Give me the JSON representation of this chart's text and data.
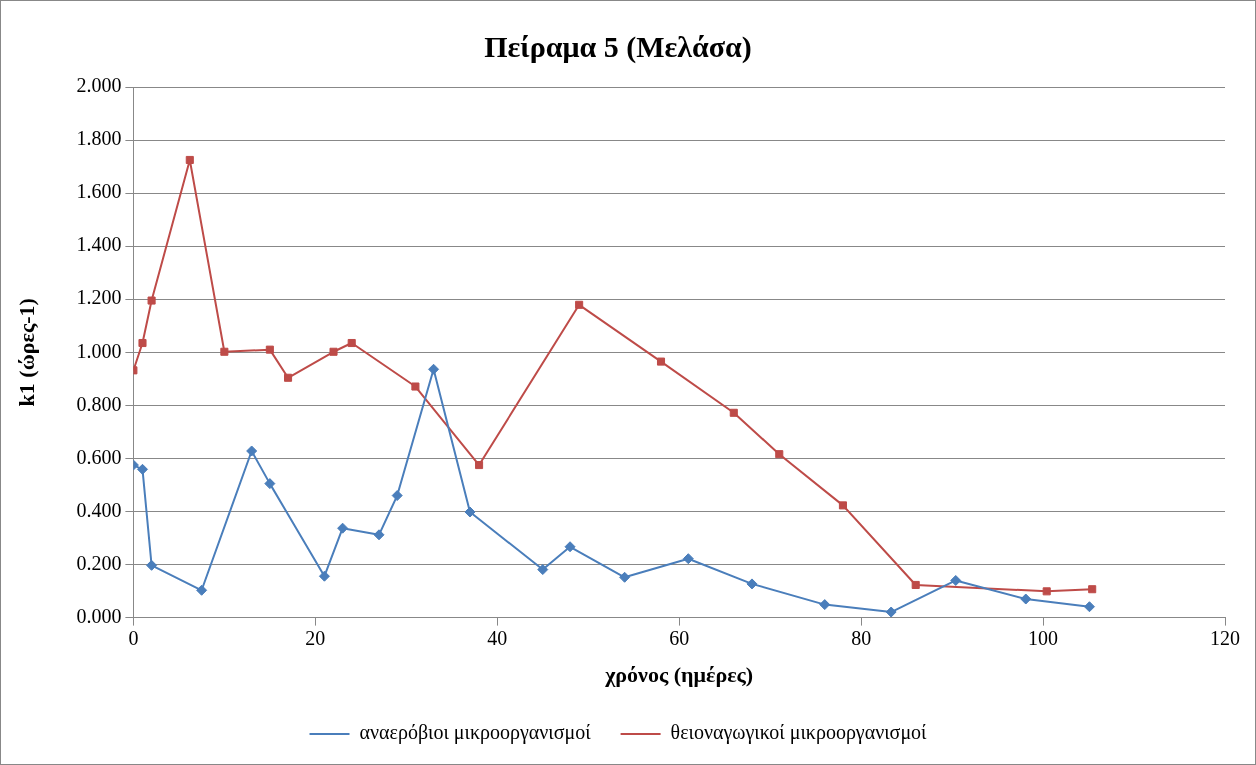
{
  "chart_data": {
    "type": "line",
    "title": "Πείραμα 5 (Μελάσα)",
    "xlabel": "χρόνος (ημέρες)",
    "ylabel": "k1 (ώρες-1)",
    "xlim": [
      0,
      120
    ],
    "xticks": [
      0,
      20,
      40,
      60,
      80,
      100,
      120
    ],
    "ylim": [
      0,
      2
    ],
    "yticks": [
      {
        "value": 0,
        "label": "0.000"
      },
      {
        "value": 0.2,
        "label": "0.200"
      },
      {
        "value": 0.4,
        "label": "0.400"
      },
      {
        "value": 0.6,
        "label": "0.600"
      },
      {
        "value": 0.8,
        "label": "0.800"
      },
      {
        "value": 1,
        "label": "1.000"
      },
      {
        "value": 1.2,
        "label": "1.200"
      },
      {
        "value": 1.4,
        "label": "1.400"
      },
      {
        "value": 1.6,
        "label": "1.600"
      },
      {
        "value": 1.8,
        "label": "1.800"
      },
      {
        "value": 2,
        "label": "2.000"
      }
    ],
    "grid": "y",
    "legend": "bottom",
    "line_style": "solid",
    "series": [
      {
        "name": "αναερόβιοι μικροοργανισμοί",
        "color": "#4a7ebb",
        "marker": "diamond",
        "x": [
          0,
          1,
          2,
          7.5,
          13,
          15,
          21,
          23,
          27,
          29,
          33,
          37,
          45,
          48,
          54,
          61,
          68,
          76,
          83.3,
          90.4,
          98.1,
          105.1
        ],
        "values": [
          0.575,
          0.559,
          0.197,
          0.103,
          0.628,
          0.505,
          0.156,
          0.337,
          0.312,
          0.46,
          0.936,
          0.398,
          0.181,
          0.267,
          0.152,
          0.222,
          0.127,
          0.049,
          0.021,
          0.14,
          0.07,
          0.041
        ]
      },
      {
        "name": "θειοναγωγικοί μικροοργανισμοί",
        "color": "#be4b48",
        "marker": "square",
        "x": [
          0,
          1,
          2,
          6.2,
          10,
          15,
          17,
          22,
          24,
          31,
          38,
          49,
          58,
          66,
          71,
          78,
          86,
          100.4,
          105.4
        ],
        "values": [
          0.932,
          1.035,
          1.195,
          1.725,
          1.002,
          1.01,
          0.904,
          1.002,
          1.035,
          0.871,
          0.575,
          1.179,
          0.965,
          0.772,
          0.616,
          0.423,
          0.123,
          0.099,
          0.107
        ]
      }
    ]
  }
}
